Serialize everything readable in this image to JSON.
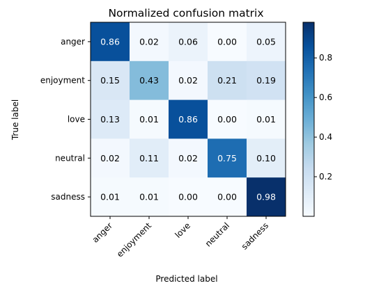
{
  "chart_data": {
    "type": "heatmap",
    "title": "Normalized confusion matrix",
    "xlabel": "Predicted label",
    "ylabel": "True label",
    "x_categories": [
      "anger",
      "enjoyment",
      "love",
      "neutral",
      "sadness"
    ],
    "y_categories": [
      "anger",
      "enjoyment",
      "love",
      "neutral",
      "sadness"
    ],
    "values": [
      [
        0.86,
        0.02,
        0.06,
        0.0,
        0.05
      ],
      [
        0.15,
        0.43,
        0.02,
        0.21,
        0.19
      ],
      [
        0.13,
        0.01,
        0.86,
        0.0,
        0.01
      ],
      [
        0.02,
        0.11,
        0.02,
        0.75,
        0.1
      ],
      [
        0.01,
        0.01,
        0.0,
        0.0,
        0.98
      ]
    ],
    "cell_labels": [
      [
        "0.86",
        "0.02",
        "0.06",
        "0.00",
        "0.05"
      ],
      [
        "0.15",
        "0.43",
        "0.02",
        "0.21",
        "0.19"
      ],
      [
        "0.13",
        "0.01",
        "0.86",
        "0.00",
        "0.01"
      ],
      [
        "0.02",
        "0.11",
        "0.02",
        "0.75",
        "0.10"
      ],
      [
        "0.01",
        "0.01",
        "0.00",
        "0.00",
        "0.98"
      ]
    ],
    "colormap": "Blues",
    "color_range": [
      0.0,
      0.98
    ],
    "colorbar": {
      "ticks": [
        0.2,
        0.4,
        0.6,
        0.8
      ],
      "tick_labels": [
        "0.2",
        "0.4",
        "0.6",
        "0.8"
      ]
    },
    "x_tick_rotation_deg": 45,
    "grid": false
  }
}
